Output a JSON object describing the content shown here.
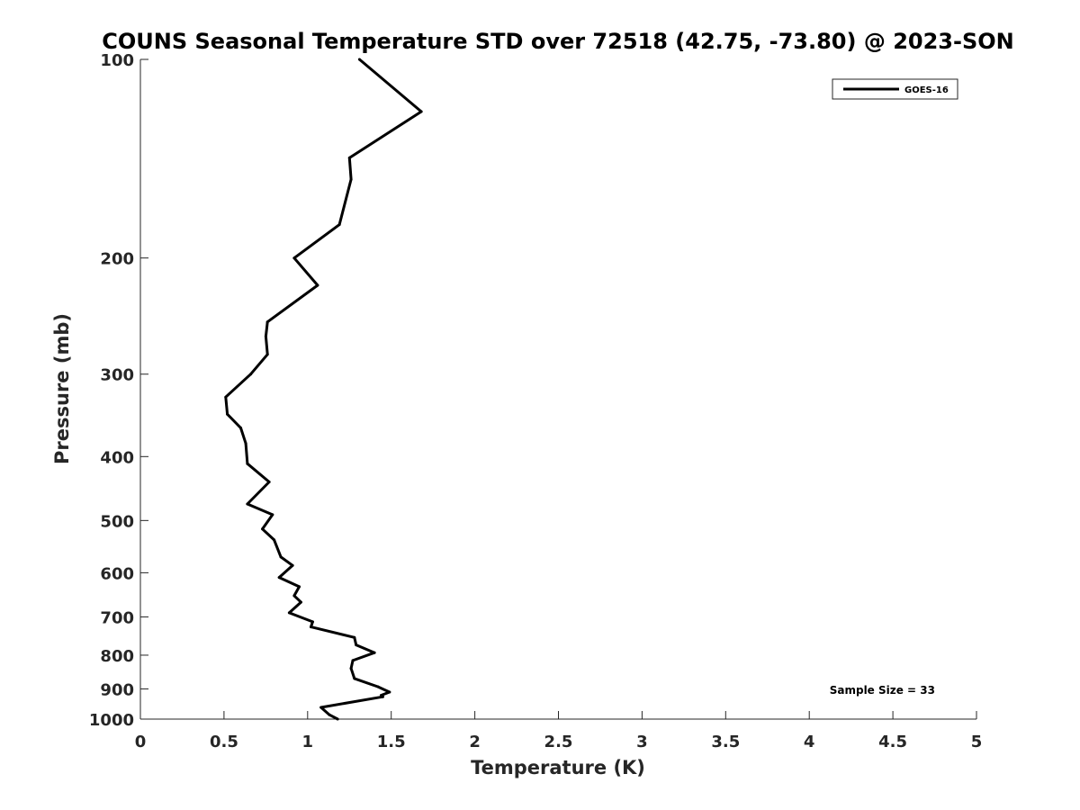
{
  "chart_data": {
    "type": "line",
    "title": "COUNS Seasonal Temperature STD over 72518 (42.75, -73.80) @ 2023-SON",
    "xlabel": "Temperature (K)",
    "ylabel": "Pressure (mb)",
    "xlim": [
      0,
      5
    ],
    "ylim": [
      100,
      1000
    ],
    "y_scale": "log",
    "y_reversed": true,
    "grid": false,
    "legend_position": "top-right",
    "x_ticks": [
      "0",
      "0.5",
      "1",
      "1.5",
      "2",
      "2.5",
      "3",
      "3.5",
      "4",
      "4.5",
      "5"
    ],
    "y_ticks": [
      "100",
      "200",
      "300",
      "400",
      "500",
      "600",
      "700",
      "800",
      "900",
      "1000"
    ],
    "series": [
      {
        "name": "GOES-16",
        "color": "#000000",
        "x": [
          1.31,
          1.68,
          1.25,
          1.26,
          1.19,
          0.92,
          1.06,
          0.76,
          0.75,
          0.76,
          0.66,
          0.51,
          0.52,
          0.6,
          0.63,
          0.64,
          0.77,
          0.64,
          0.79,
          0.73,
          0.8,
          0.84,
          0.91,
          0.83,
          0.95,
          0.92,
          0.96,
          0.89,
          1.03,
          1.02,
          1.28,
          1.29,
          1.4,
          1.27,
          1.26,
          1.28,
          1.42,
          1.49,
          1.44,
          1.45,
          1.08,
          1.13,
          1.18
        ],
        "y": [
          100,
          120,
          141,
          152,
          178,
          200,
          220,
          250,
          263,
          280,
          300,
          325,
          345,
          362,
          382,
          410,
          437,
          472,
          490,
          515,
          535,
          568,
          585,
          610,
          630,
          650,
          665,
          690,
          712,
          725,
          752,
          772,
          793,
          815,
          838,
          868,
          893,
          910,
          920,
          925,
          960,
          985,
          1000
        ]
      }
    ],
    "annotation": "Sample Size = 33"
  }
}
